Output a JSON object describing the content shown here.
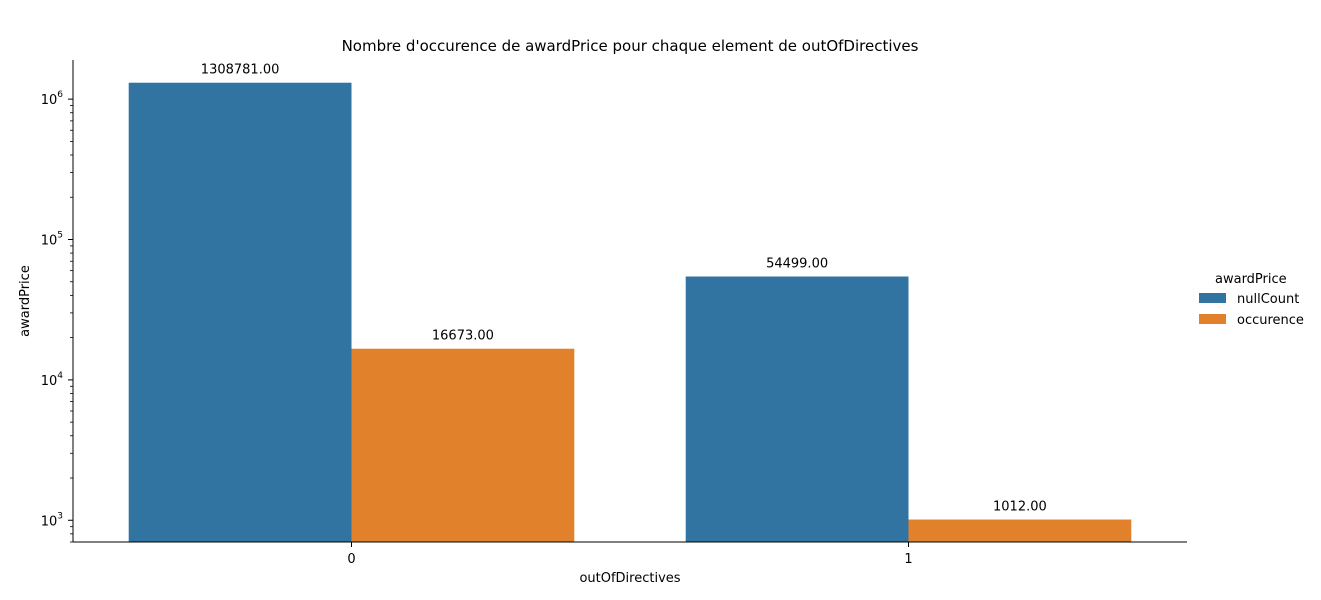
{
  "chart_data": {
    "type": "bar",
    "title": "Nombre d'occurence de awardPrice pour chaque element de outOfDirectives",
    "xlabel": "outOfDirectives",
    "ylabel": "awardPrice",
    "yscale": "log",
    "ylim": [
      700,
      1900000
    ],
    "y_tick_labels": [
      {
        "value": 1000,
        "base": "10",
        "exp": "3"
      },
      {
        "value": 10000,
        "base": "10",
        "exp": "4"
      },
      {
        "value": 100000,
        "base": "10",
        "exp": "5"
      },
      {
        "value": 1000000,
        "base": "10",
        "exp": "6"
      }
    ],
    "categories": [
      "0",
      "1"
    ],
    "legend_title": "awardPrice",
    "legend_position": "right",
    "grid": false,
    "series": [
      {
        "name": "nullCount",
        "color": "#3274a1",
        "values": [
          1308781,
          54499
        ],
        "labels": [
          "1308781.00",
          "54499.00"
        ]
      },
      {
        "name": "occurence",
        "color": "#e1812c",
        "values": [
          16673,
          1012
        ],
        "labels": [
          "16673.00",
          "1012.00"
        ]
      }
    ]
  }
}
